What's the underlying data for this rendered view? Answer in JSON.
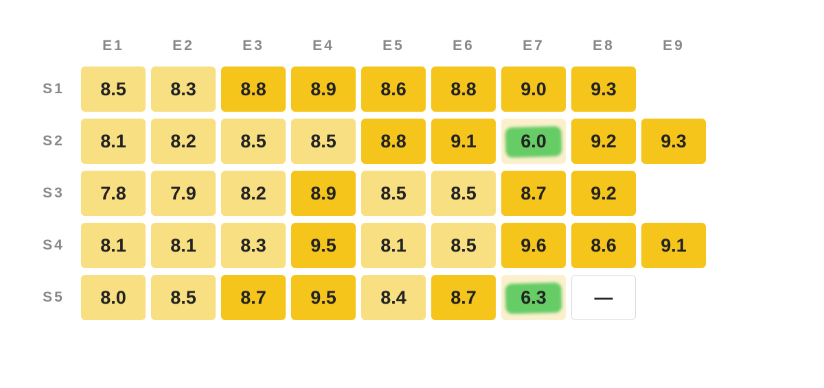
{
  "chart_data": {
    "type": "heatmap",
    "title": "",
    "columns": [
      "E1",
      "E2",
      "E3",
      "E4",
      "E5",
      "E6",
      "E7",
      "E8",
      "E9"
    ],
    "rows": [
      "S1",
      "S2",
      "S3",
      "S4",
      "S5"
    ],
    "values": [
      [
        "8.5",
        "8.3",
        "8.8",
        "8.9",
        "8.6",
        "8.8",
        "9.0",
        "9.3",
        null
      ],
      [
        "8.1",
        "8.2",
        "8.5",
        "8.5",
        "8.8",
        "9.1",
        "6.0",
        "9.2",
        "9.3"
      ],
      [
        "7.8",
        "7.9",
        "8.2",
        "8.9",
        "8.5",
        "8.5",
        "8.7",
        "9.2",
        null
      ],
      [
        "8.1",
        "8.1",
        "8.3",
        "9.5",
        "8.1",
        "8.5",
        "9.6",
        "8.6",
        "9.1"
      ],
      [
        "8.0",
        "8.5",
        "8.7",
        "9.5",
        "8.4",
        "8.7",
        "6.3",
        "—",
        null
      ]
    ],
    "tiers": [
      [
        "light",
        "light",
        "dark",
        "dark",
        "dark",
        "dark",
        "dark",
        "dark",
        null
      ],
      [
        "light",
        "light",
        "light",
        "light",
        "dark",
        "dark",
        "highlight",
        "dark",
        "dark"
      ],
      [
        "light",
        "light",
        "light",
        "dark",
        "light",
        "light",
        "dark",
        "dark",
        null
      ],
      [
        "light",
        "light",
        "light",
        "dark",
        "light",
        "light",
        "dark",
        "dark",
        "dark"
      ],
      [
        "light",
        "light",
        "dark",
        "dark",
        "light",
        "dark",
        "highlight",
        "empty",
        null
      ]
    ],
    "colors": {
      "light": "#f8df82",
      "dark": "#f5c51c",
      "highlight_bg": "#fbf0cc",
      "highlight_mark": "#66cc66",
      "empty": "#ffffff"
    }
  }
}
